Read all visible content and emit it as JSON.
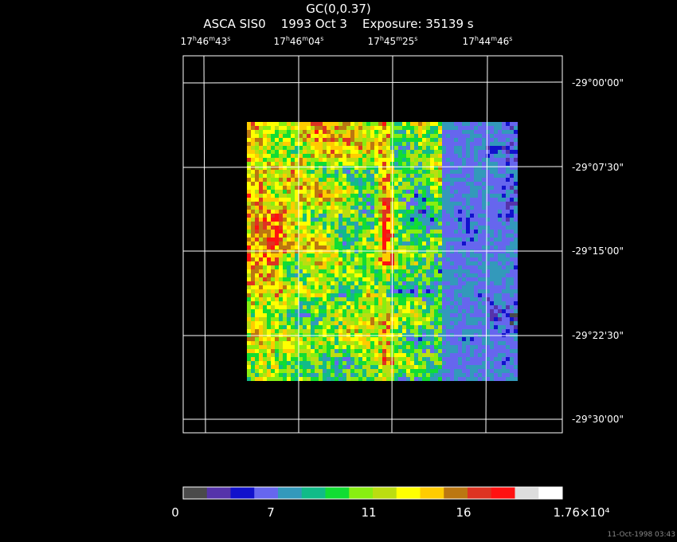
{
  "header": {
    "title": "GC(0,0.37)",
    "subtitle_instrument": "ASCA SIS0",
    "subtitle_date": "1993 Oct  3",
    "subtitle_exposure": "Exposure: 35139 s"
  },
  "axes": {
    "ra_ticks": [
      {
        "h": "17",
        "m": "46",
        "s": "43"
      },
      {
        "h": "17",
        "m": "46",
        "s": "04"
      },
      {
        "h": "17",
        "m": "45",
        "s": "25"
      },
      {
        "h": "17",
        "m": "44",
        "s": "46"
      }
    ],
    "dec_ticks": [
      "-29°00'00\"",
      "-29°07'30\"",
      "-29°15'00\"",
      "-29°22'30\"",
      "-29°30'00\""
    ]
  },
  "colorbar": {
    "labels": [
      "0",
      "7",
      "11",
      "16",
      "1.76×10⁴"
    ],
    "colors": [
      "#4a4a4a",
      "#5533aa",
      "#1111cc",
      "#6666ee",
      "#3399bb",
      "#11bb88",
      "#11dd33",
      "#88ee11",
      "#bbdd11",
      "#ffff00",
      "#ffcc00",
      "#bb7711",
      "#dd3322",
      "#ff1111",
      "#dddddd",
      "#ffffff"
    ]
  },
  "footer": {
    "timestamp": "11-Oct-1998 03:43"
  }
}
